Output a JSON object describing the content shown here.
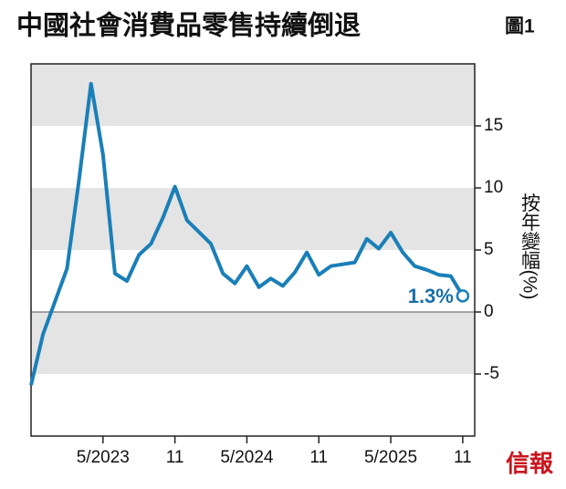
{
  "chart_data": {
    "type": "line",
    "title": "中國社會消費品零售持續倒退",
    "subtitle": "圖1",
    "y_label": "按年變幅(%)",
    "logo": "信報",
    "x": [
      "2022-11",
      "2022-12",
      "2023-02",
      "2023-03",
      "2023-04",
      "2023-05",
      "2023-06",
      "2023-07",
      "2023-08",
      "2023-09",
      "2023-10",
      "2023-11",
      "2023-12",
      "2024-02",
      "2024-03",
      "2024-04",
      "2024-05",
      "2024-06",
      "2024-07",
      "2024-08",
      "2024-09",
      "2024-10",
      "2024-11",
      "2024-12",
      "2025-02",
      "2025-03",
      "2025-04",
      "2025-05",
      "2025-06",
      "2025-07",
      "2025-08",
      "2025-09",
      "2025-10",
      "2025-11"
    ],
    "series": [
      {
        "name": "社會消費品零售",
        "color": "#1a7fb8",
        "values": [
          -5.9,
          -1.8,
          3.5,
          10.6,
          18.4,
          12.7,
          3.1,
          2.5,
          4.6,
          5.5,
          7.6,
          10.1,
          7.4,
          5.5,
          3.1,
          2.3,
          3.7,
          2.0,
          2.7,
          2.1,
          3.2,
          4.8,
          3.0,
          3.7,
          4.0,
          5.9,
          5.1,
          6.4,
          4.8,
          3.7,
          3.4,
          3.0,
          2.9,
          1.3
        ]
      }
    ],
    "annotation": "1.3%",
    "xlim": [
      "2022-11",
      "2025-12"
    ],
    "xticks": [
      {
        "value": "2023-05",
        "label": "5/2023"
      },
      {
        "value": "2023-11",
        "label": "11"
      },
      {
        "value": "2024-05",
        "label": "5/2024"
      },
      {
        "value": "2024-11",
        "label": "11"
      },
      {
        "value": "2025-05",
        "label": "5/2025"
      },
      {
        "value": "2025-11",
        "label": "11"
      }
    ],
    "ylim": [
      -10,
      20
    ],
    "yticks": [
      15,
      10,
      5,
      0,
      -5
    ],
    "bands": [
      [
        15,
        20
      ],
      [
        5,
        10
      ],
      [
        -5,
        0
      ]
    ],
    "band_color": "#e4e4e4"
  }
}
